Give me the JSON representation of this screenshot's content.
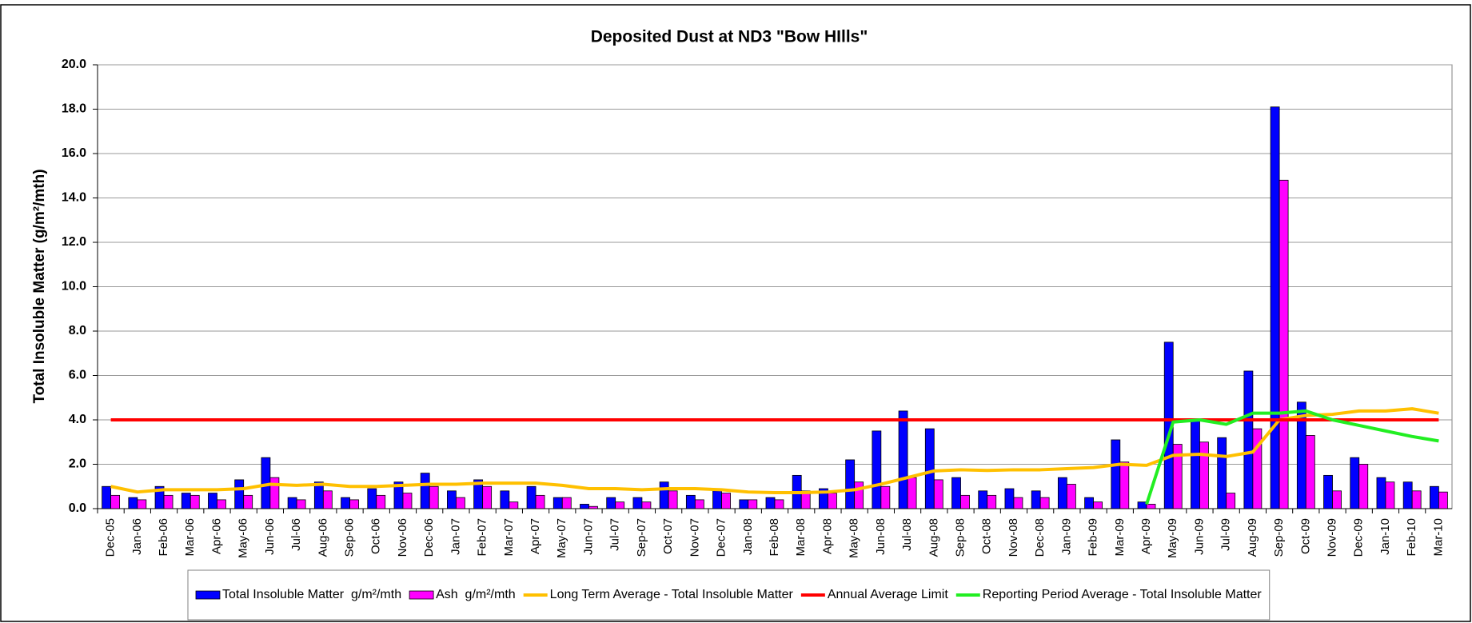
{
  "chart_data": {
    "type": "bar",
    "title": "Deposited Dust at ND3 \"Bow HIlls\"",
    "y_label": "Total Insoluble Matter  (g/m²/mth)",
    "categories": [
      "Dec-05",
      "Jan-06",
      "Feb-06",
      "Mar-06",
      "Apr-06",
      "May-06",
      "Jun-06",
      "Jul-06",
      "Aug-06",
      "Sep-06",
      "Oct-06",
      "Nov-06",
      "Dec-06",
      "Jan-07",
      "Feb-07",
      "Mar-07",
      "Apr-07",
      "May-07",
      "Jun-07",
      "Jul-07",
      "Sep-07",
      "Oct-07",
      "Nov-07",
      "Dec-07",
      "Jan-08",
      "Feb-08",
      "Mar-08",
      "Apr-08",
      "May-08",
      "Jun-08",
      "Jul-08",
      "Aug-08",
      "Sep-08",
      "Oct-08",
      "Nov-08",
      "Dec-08",
      "Jan-09",
      "Feb-09",
      "Mar-09",
      "Apr-09",
      "May-09",
      "Jun-09",
      "Jul-09",
      "Aug-09",
      "Sep-09",
      "Oct-09",
      "Nov-09",
      "Dec-09",
      "Jan-10",
      "Feb-10",
      "Mar-10"
    ],
    "series": [
      {
        "name": "Total Insoluble Matter  g/m²/mth",
        "type": "bar",
        "color": "#0000ff",
        "values": [
          1.0,
          0.5,
          1.0,
          0.7,
          0.7,
          1.3,
          2.3,
          0.5,
          1.2,
          0.5,
          0.9,
          1.2,
          1.6,
          0.8,
          1.3,
          0.8,
          1.0,
          0.5,
          0.2,
          0.5,
          0.5,
          1.2,
          0.6,
          0.8,
          0.4,
          0.5,
          1.5,
          0.9,
          2.2,
          3.5,
          4.4,
          3.6,
          1.4,
          0.8,
          0.9,
          0.8,
          1.4,
          0.5,
          3.1,
          0.3,
          7.5,
          4.0,
          3.2,
          6.2,
          18.1,
          4.8,
          1.5,
          2.3,
          1.4,
          1.2,
          1.0
        ]
      },
      {
        "name": "Ash  g/m²/mth",
        "type": "bar",
        "color": "#ff00ff",
        "values": [
          0.6,
          0.4,
          0.6,
          0.6,
          0.4,
          0.6,
          1.4,
          0.4,
          0.8,
          0.4,
          0.6,
          0.7,
          1.0,
          0.5,
          1.0,
          0.3,
          0.6,
          0.5,
          0.1,
          0.3,
          0.3,
          0.8,
          0.4,
          0.7,
          0.4,
          0.4,
          0.8,
          0.7,
          1.2,
          1.0,
          1.4,
          1.3,
          0.6,
          0.6,
          0.5,
          0.5,
          1.1,
          0.3,
          2.1,
          0.2,
          2.9,
          3.0,
          0.7,
          3.6,
          14.8,
          3.3,
          0.8,
          2.0,
          1.2,
          0.8,
          0.75
        ]
      },
      {
        "name": "Long Term Average - Total Insoluble Matter",
        "type": "line",
        "color": "#ffc000",
        "values": [
          1.0,
          0.75,
          0.85,
          0.85,
          0.85,
          0.9,
          1.1,
          1.05,
          1.1,
          1.0,
          1.0,
          1.05,
          1.1,
          1.1,
          1.15,
          1.15,
          1.15,
          1.05,
          0.9,
          0.9,
          0.85,
          0.9,
          0.9,
          0.85,
          0.75,
          0.72,
          0.72,
          0.75,
          0.85,
          1.1,
          1.4,
          1.7,
          1.75,
          1.72,
          1.75,
          1.75,
          1.8,
          1.85,
          2.0,
          1.95,
          2.4,
          2.45,
          2.35,
          2.55,
          4.0,
          4.2,
          4.25,
          4.4,
          4.4,
          4.5,
          4.3
        ]
      },
      {
        "name": "Annual Average Limit",
        "type": "line",
        "color": "#ff0000",
        "values": [
          4,
          4,
          4,
          4,
          4,
          4,
          4,
          4,
          4,
          4,
          4,
          4,
          4,
          4,
          4,
          4,
          4,
          4,
          4,
          4,
          4,
          4,
          4,
          4,
          4,
          4,
          4,
          4,
          4,
          4,
          4,
          4,
          4,
          4,
          4,
          4,
          4,
          4,
          4,
          4,
          4,
          4,
          4,
          4,
          4,
          4,
          4,
          4,
          4,
          4,
          4
        ]
      },
      {
        "name": "Reporting Period Average - Total Insoluble Matter",
        "type": "line",
        "color": "#22ee22",
        "values": [
          null,
          null,
          null,
          null,
          null,
          null,
          null,
          null,
          null,
          null,
          null,
          null,
          null,
          null,
          null,
          null,
          null,
          null,
          null,
          null,
          null,
          null,
          null,
          null,
          null,
          null,
          null,
          null,
          null,
          null,
          null,
          null,
          null,
          null,
          null,
          null,
          null,
          null,
          null,
          0.2,
          3.9,
          4.0,
          3.8,
          4.3,
          4.3,
          4.4,
          4.0,
          3.75,
          3.5,
          3.25,
          3.05
        ]
      }
    ],
    "ylim": [
      0,
      20
    ],
    "yticks": [
      {
        "value": 0,
        "label": "0.0"
      },
      {
        "value": 2,
        "label": "2.0"
      },
      {
        "value": 4,
        "label": "4.0"
      },
      {
        "value": 6,
        "label": "6.0"
      },
      {
        "value": 8,
        "label": "8.0"
      },
      {
        "value": 10,
        "label": "10.0"
      },
      {
        "value": 12,
        "label": "12.0"
      },
      {
        "value": 14,
        "label": "14.0"
      },
      {
        "value": 16,
        "label": "16.0"
      },
      {
        "value": 18,
        "label": "18.0"
      },
      {
        "value": 20,
        "label": "20.0"
      }
    ],
    "grid": true,
    "legend": "bottom"
  }
}
